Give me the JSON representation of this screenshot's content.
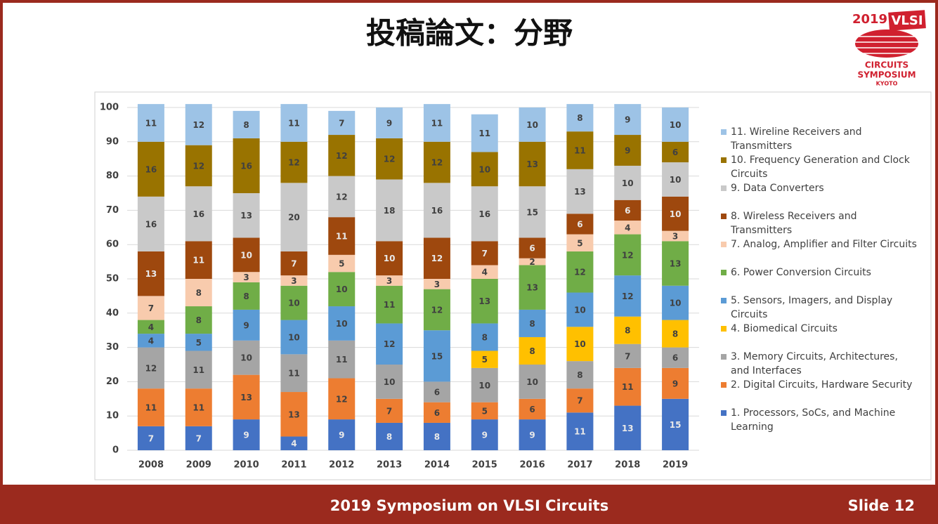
{
  "header": {
    "title": "投稿論文：分野",
    "logo": {
      "year": "2019",
      "brand": "VLSI",
      "line1": "CIRCUITS",
      "line2": "SYMPOSIUM",
      "line3": "KYOTO"
    }
  },
  "chart_data": {
    "type": "stacked_bar",
    "categories": [
      "2008",
      "2009",
      "2010",
      "2011",
      "2012",
      "2013",
      "2014",
      "2015",
      "2016",
      "2017",
      "2018",
      "2019"
    ],
    "ylim": [
      0,
      100
    ],
    "yticks": [
      0,
      10,
      20,
      30,
      40,
      50,
      60,
      70,
      80,
      90,
      100
    ],
    "grid": true,
    "series": [
      {
        "name": "1. Processors, SoCs, and Machine Learning",
        "color": "#4472c4",
        "values": [
          7,
          7,
          9,
          4,
          9,
          8,
          8,
          9,
          9,
          11,
          13,
          15
        ]
      },
      {
        "name": "2. Digital Circuits, Hardware Security",
        "color": "#ed7d31",
        "values": [
          11,
          11,
          13,
          13,
          12,
          7,
          6,
          5,
          6,
          7,
          11,
          9
        ]
      },
      {
        "name": "3. Memory Circuits, Architectures, and Interfaces",
        "color": "#a5a5a5",
        "values": [
          12,
          11,
          10,
          11,
          11,
          10,
          6,
          10,
          10,
          8,
          7,
          6
        ]
      },
      {
        "name": "4. Biomedical Circuits",
        "color": "#ffc000",
        "values": [
          null,
          null,
          null,
          null,
          null,
          null,
          null,
          5,
          8,
          10,
          8,
          8
        ]
      },
      {
        "name": "5. Sensors, Imagers, and Display Circuits",
        "color": "#5b9bd5",
        "values": [
          4,
          5,
          9,
          10,
          10,
          12,
          15,
          8,
          8,
          10,
          12,
          10
        ]
      },
      {
        "name": "6. Power Conversion Circuits",
        "color": "#70ad47",
        "values": [
          4,
          8,
          8,
          10,
          10,
          11,
          12,
          13,
          13,
          12,
          12,
          13
        ]
      },
      {
        "name": "7. Analog, Amplifier and Filter Circuits",
        "color": "#f8cbad",
        "values": [
          7,
          8,
          3,
          3,
          5,
          3,
          3,
          4,
          2,
          5,
          4,
          3
        ]
      },
      {
        "name": "8. Wireless Receivers and Transmitters",
        "color": "#9e480e",
        "values": [
          13,
          11,
          10,
          7,
          11,
          10,
          12,
          7,
          6,
          6,
          6,
          10
        ]
      },
      {
        "name": "9. Data Converters",
        "color": "#c9c9c9",
        "values": [
          16,
          16,
          13,
          20,
          12,
          18,
          16,
          16,
          15,
          13,
          10,
          10
        ]
      },
      {
        "name": "10. Frequency Generation and Clock Circuits",
        "color": "#997300",
        "values": [
          16,
          12,
          16,
          12,
          12,
          12,
          12,
          10,
          13,
          11,
          9,
          6
        ]
      },
      {
        "name": "11. Wireline Receivers and Transmitters",
        "color": "#9dc3e6",
        "values": [
          11,
          12,
          8,
          11,
          7,
          9,
          11,
          11,
          10,
          8,
          9,
          10
        ]
      }
    ]
  },
  "footer": {
    "title": "2019 Symposium on VLSI Circuits",
    "slide": "Slide 12"
  }
}
